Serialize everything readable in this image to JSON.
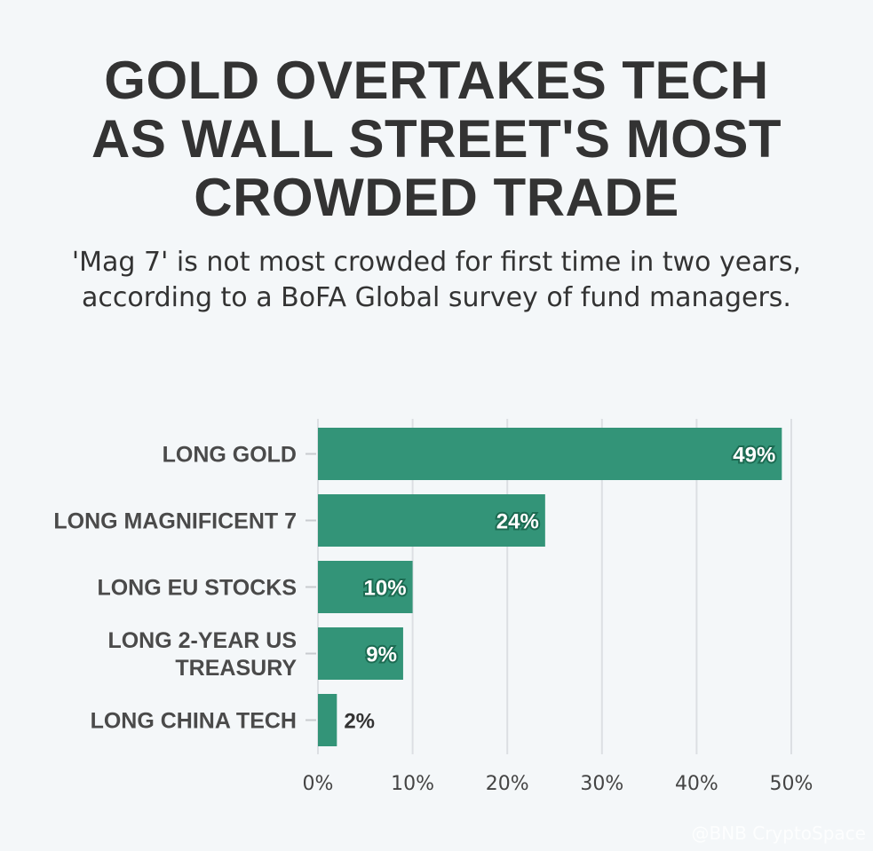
{
  "chart_data": {
    "type": "bar",
    "orientation": "horizontal",
    "title": "GOLD OVERTAKES TECH\nAS WALL STREET'S MOST\nCROWDED TRADE",
    "subtitle": "'Mag 7' is not most crowded for first time in two years, according to a BoFA Global survey of fund managers.",
    "categories": [
      [
        "LONG GOLD"
      ],
      [
        "LONG MAGNIFICENT 7"
      ],
      [
        "LONG EU STOCKS"
      ],
      [
        "LONG 2-YEAR US",
        "TREASURY"
      ],
      [
        "LONG CHINA TECH"
      ]
    ],
    "values": [
      49,
      24,
      10,
      9,
      2
    ],
    "value_labels": [
      "49%",
      "24%",
      "10%",
      "9%",
      "2%"
    ],
    "xlim": [
      0,
      50
    ],
    "x_ticks": [
      0,
      10,
      20,
      30,
      40,
      50
    ],
    "x_tick_labels": [
      "0%",
      "10%",
      "20%",
      "30%",
      "40%",
      "50%"
    ],
    "grid": true,
    "bar_color": "#339478"
  },
  "watermark": "@BNB CryptoSpace"
}
